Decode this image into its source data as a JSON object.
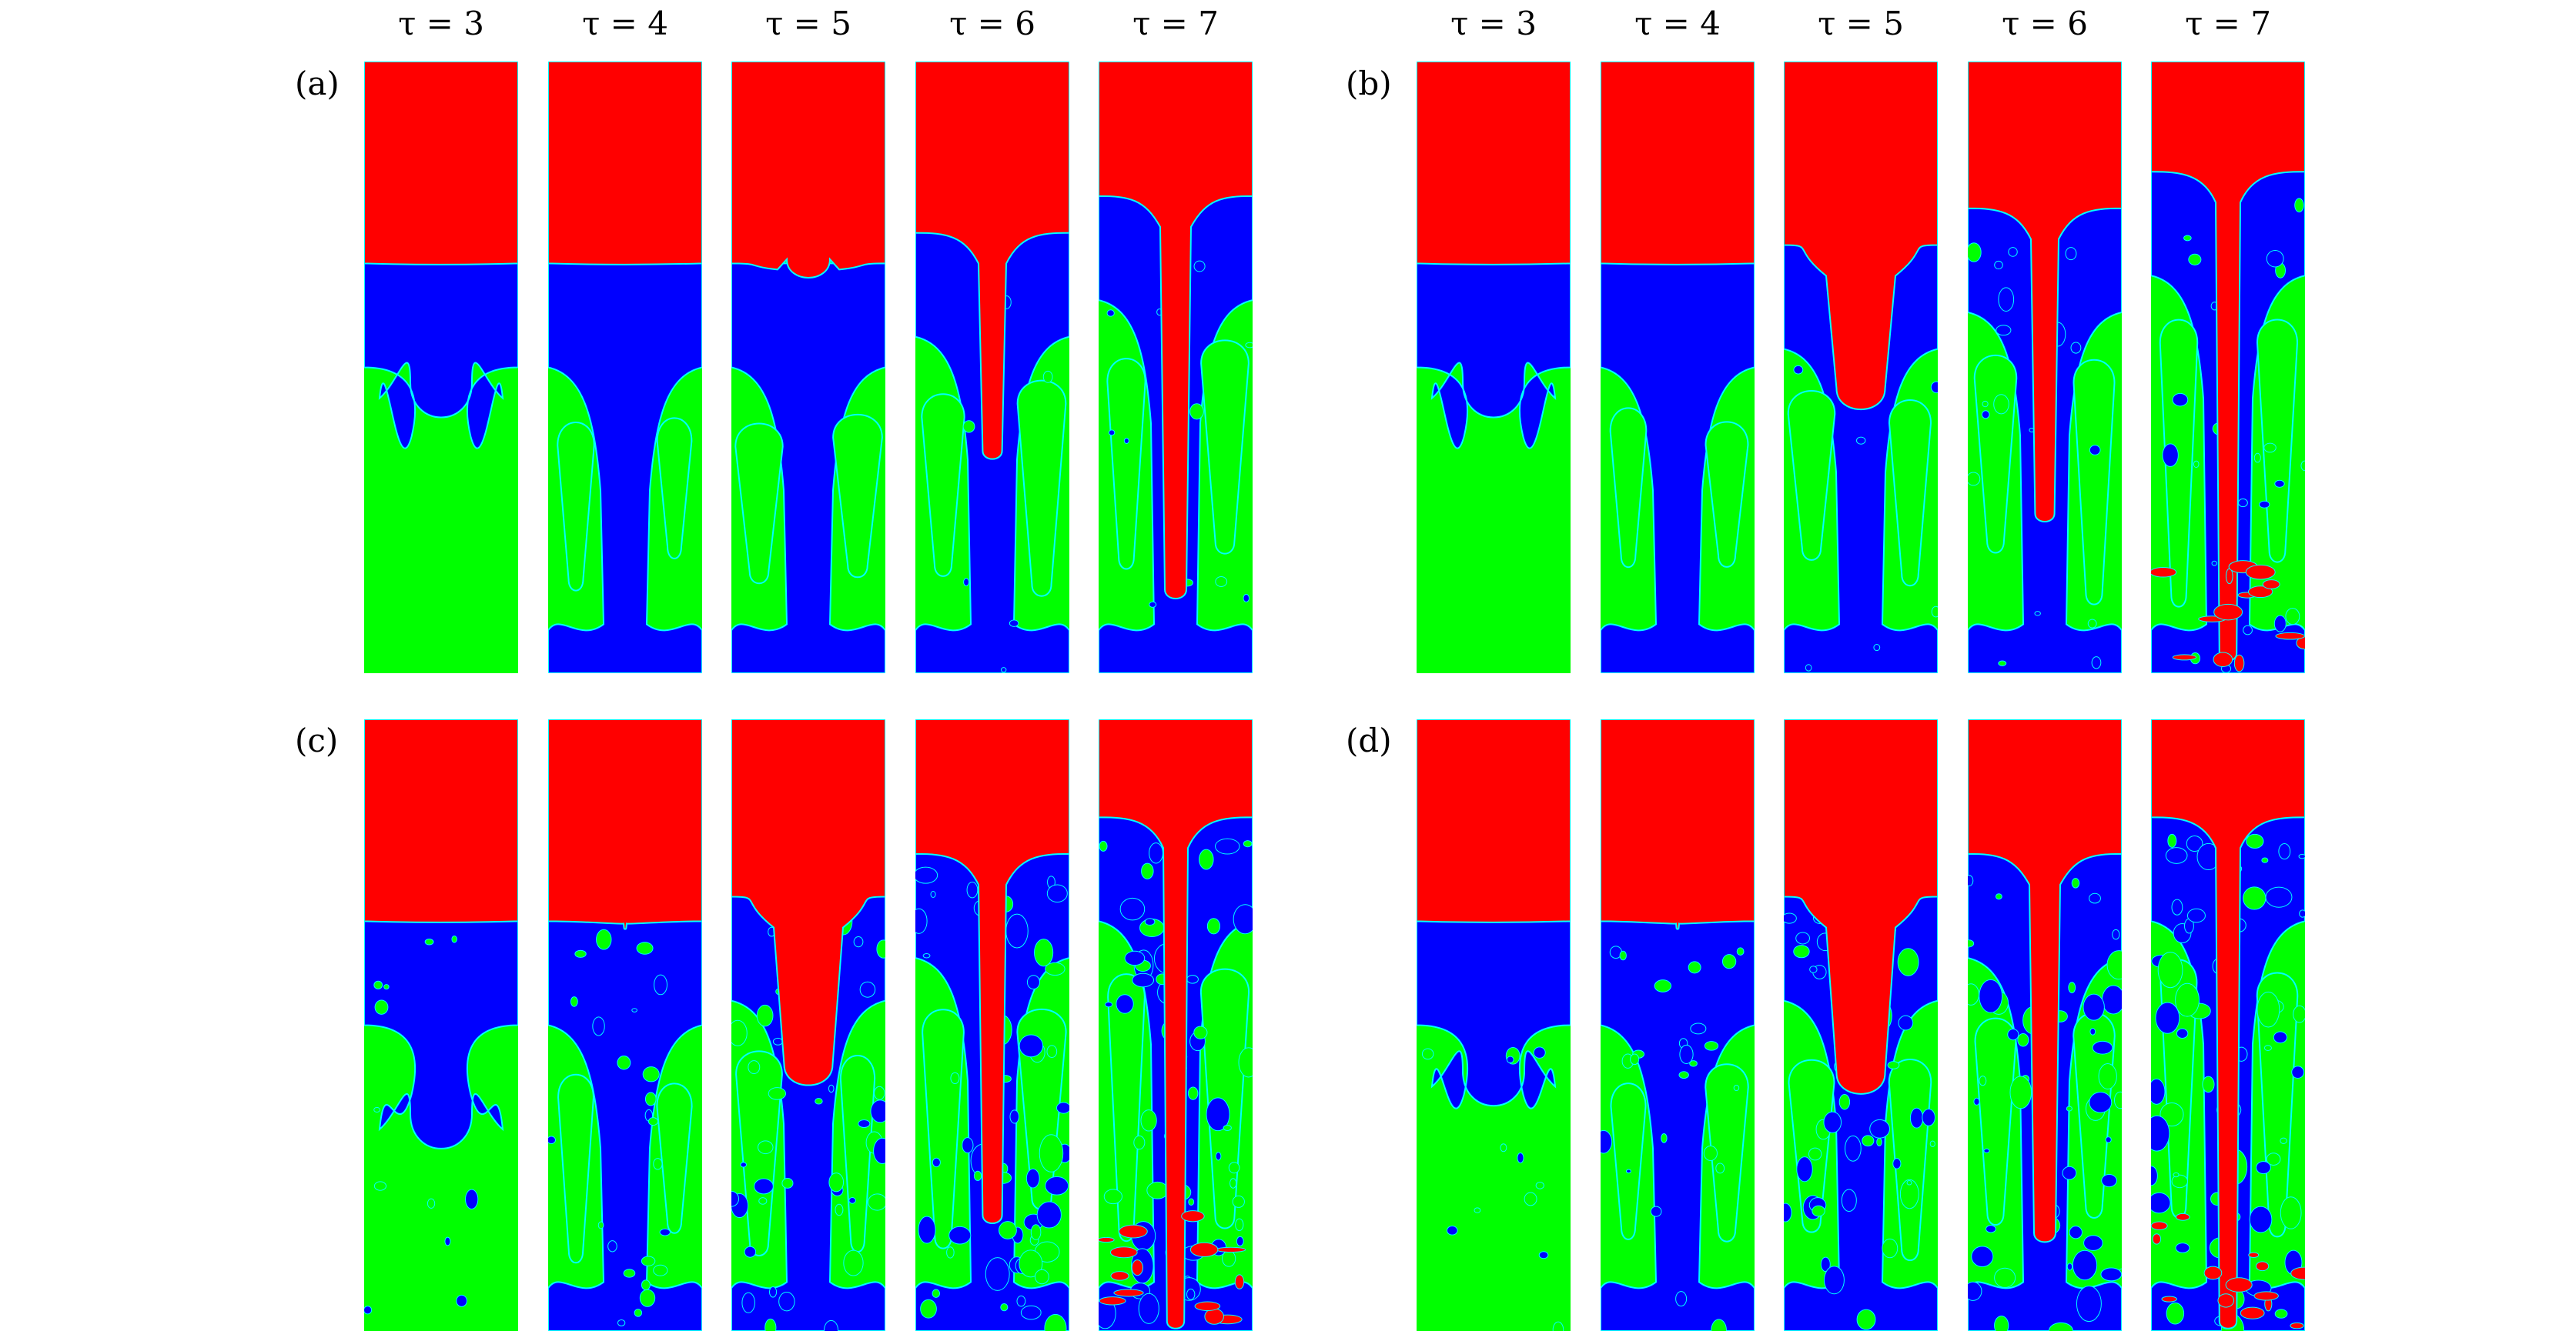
{
  "time_labels": [
    "τ = 3",
    "τ = 4",
    "τ = 5",
    "τ = 6",
    "τ = 7"
  ],
  "colors": {
    "heavy_fluid": "#ff0000",
    "middle_fluid": "#0000ff",
    "light_fluid": "#00ff00",
    "interface": "#00ffff"
  },
  "groups": [
    {
      "label": "(a)",
      "panels": [
        {
          "time": 3,
          "red_depth": 0.33,
          "spike_depth": 0.0,
          "spike_width": 0.0,
          "blue_bottom": 0.5,
          "green_bubble": 0.1,
          "mixing": 0.0
        },
        {
          "time": 4,
          "red_depth": 0.33,
          "spike_depth": 0.01,
          "spike_width": 0.0,
          "blue_bottom": 0.95,
          "green_bubble": 0.1,
          "mixing": 0.0
        },
        {
          "time": 5,
          "red_depth": 0.33,
          "spike_depth": 0.05,
          "spike_width": 0.4,
          "blue_bottom": 1.0,
          "green_bubble": 0.1,
          "mixing": 0.0
        },
        {
          "time": 6,
          "red_depth": 0.28,
          "spike_depth": 0.52,
          "spike_width": 0.18,
          "blue_bottom": 1.0,
          "green_bubble": 0.1,
          "mixing": 0.1
        },
        {
          "time": 7,
          "red_depth": 0.22,
          "spike_depth": 0.85,
          "spike_width": 0.2,
          "blue_bottom": 1.0,
          "green_bubble": 0.1,
          "mixing": 0.2
        }
      ]
    },
    {
      "label": "(b)",
      "panels": [
        {
          "time": 3,
          "red_depth": 0.33,
          "spike_depth": 0.0,
          "spike_width": 0.0,
          "blue_bottom": 0.5,
          "green_bubble": 0.1,
          "mixing": 0.0
        },
        {
          "time": 4,
          "red_depth": 0.33,
          "spike_depth": 0.01,
          "spike_width": 0.0,
          "blue_bottom": 0.95,
          "green_bubble": 0.1,
          "mixing": 0.0
        },
        {
          "time": 5,
          "red_depth": 0.3,
          "spike_depth": 0.4,
          "spike_width": 0.45,
          "blue_bottom": 1.0,
          "green_bubble": 0.1,
          "mixing": 0.1
        },
        {
          "time": 6,
          "red_depth": 0.24,
          "spike_depth": 0.68,
          "spike_width": 0.18,
          "blue_bottom": 1.0,
          "green_bubble": 0.1,
          "mixing": 0.3
        },
        {
          "time": 7,
          "red_depth": 0.18,
          "spike_depth": 0.98,
          "spike_width": 0.16,
          "blue_bottom": 1.0,
          "green_bubble": 0.1,
          "mixing": 0.4
        }
      ]
    },
    {
      "label": "(c)",
      "panels": [
        {
          "time": 3,
          "red_depth": 0.33,
          "spike_depth": 0.0,
          "spike_width": 0.0,
          "blue_bottom": 0.62,
          "green_bubble": 0.1,
          "mixing": 0.2
        },
        {
          "time": 4,
          "red_depth": 0.33,
          "spike_depth": 0.02,
          "spike_width": 0.0,
          "blue_bottom": 0.95,
          "green_bubble": 0.1,
          "mixing": 0.4
        },
        {
          "time": 5,
          "red_depth": 0.29,
          "spike_depth": 0.45,
          "spike_width": 0.45,
          "blue_bottom": 1.0,
          "green_bubble": 0.1,
          "mixing": 0.7
        },
        {
          "time": 6,
          "red_depth": 0.22,
          "spike_depth": 0.78,
          "spike_width": 0.18,
          "blue_bottom": 1.0,
          "green_bubble": 0.1,
          "mixing": 0.9
        },
        {
          "time": 7,
          "red_depth": 0.16,
          "spike_depth": 1.0,
          "spike_width": 0.16,
          "blue_bottom": 1.0,
          "green_bubble": 0.1,
          "mixing": 1.0
        }
      ]
    },
    {
      "label": "(d)",
      "panels": [
        {
          "time": 3,
          "red_depth": 0.33,
          "spike_depth": 0.0,
          "spike_width": 0.0,
          "blue_bottom": 0.55,
          "green_bubble": 0.1,
          "mixing": 0.2
        },
        {
          "time": 4,
          "red_depth": 0.33,
          "spike_depth": 0.02,
          "spike_width": 0.0,
          "blue_bottom": 0.95,
          "green_bubble": 0.1,
          "mixing": 0.4
        },
        {
          "time": 5,
          "red_depth": 0.29,
          "spike_depth": 0.47,
          "spike_width": 0.45,
          "blue_bottom": 1.0,
          "green_bubble": 0.1,
          "mixing": 0.7
        },
        {
          "time": 6,
          "red_depth": 0.22,
          "spike_depth": 0.82,
          "spike_width": 0.2,
          "blue_bottom": 1.0,
          "green_bubble": 0.1,
          "mixing": 0.9
        },
        {
          "time": 7,
          "red_depth": 0.16,
          "spike_depth": 1.0,
          "spike_width": 0.16,
          "blue_bottom": 1.0,
          "green_bubble": 0.1,
          "mixing": 1.0
        }
      ]
    }
  ]
}
